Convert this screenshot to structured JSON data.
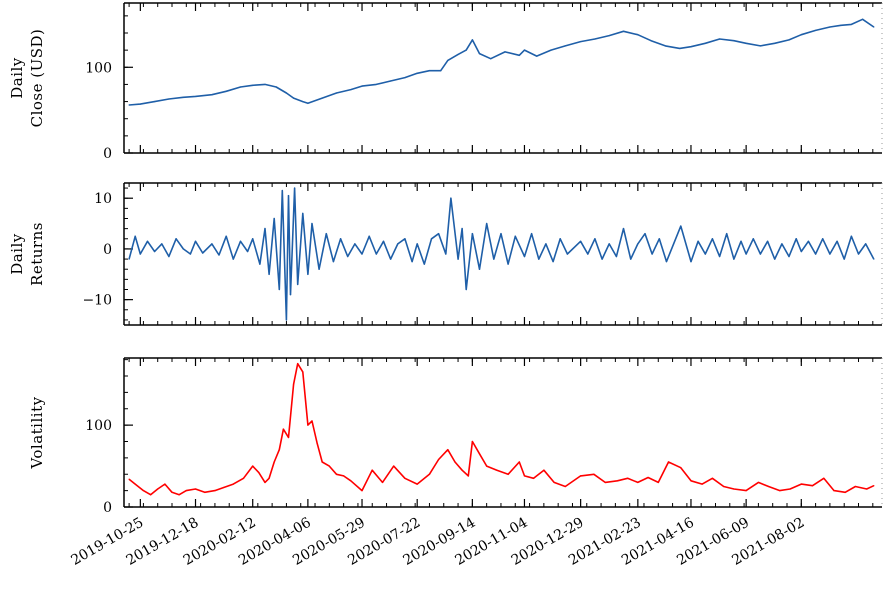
{
  "chart_data": [
    {
      "type": "line",
      "ylabel": [
        "Daily",
        "Close (USD)"
      ],
      "ylim": [
        0,
        175
      ],
      "yticks": [
        0,
        100
      ],
      "series": [
        {
          "color": "#1f5fa8",
          "x": [
            "2019-10-14",
            "2019-10-25",
            "2019-11-08",
            "2019-11-22",
            "2019-12-06",
            "2019-12-18",
            "2020-01-03",
            "2020-01-17",
            "2020-01-31",
            "2020-02-12",
            "2020-02-24",
            "2020-03-06",
            "2020-03-16",
            "2020-03-23",
            "2020-04-01",
            "2020-04-06",
            "2020-04-20",
            "2020-05-04",
            "2020-05-18",
            "2020-05-29",
            "2020-06-12",
            "2020-06-26",
            "2020-07-10",
            "2020-07-22",
            "2020-08-03",
            "2020-08-14",
            "2020-08-21",
            "2020-08-31",
            "2020-09-08",
            "2020-09-14",
            "2020-09-21",
            "2020-10-02",
            "2020-10-16",
            "2020-10-30",
            "2020-11-04",
            "2020-11-16",
            "2020-11-30",
            "2020-12-14",
            "2020-12-29",
            "2021-01-12",
            "2021-01-26",
            "2021-02-09",
            "2021-02-23",
            "2021-03-08",
            "2021-03-22",
            "2021-04-05",
            "2021-04-16",
            "2021-04-30",
            "2021-05-14",
            "2021-05-28",
            "2021-06-09",
            "2021-06-23",
            "2021-07-07",
            "2021-07-21",
            "2021-08-02",
            "2021-08-16",
            "2021-08-30",
            "2021-09-10",
            "2021-09-20",
            "2021-10-01",
            "2021-10-12"
          ],
          "values": [
            56,
            57,
            60,
            63,
            65,
            66,
            68,
            72,
            77,
            79,
            80,
            77,
            70,
            64,
            60,
            58,
            64,
            70,
            74,
            78,
            80,
            84,
            88,
            93,
            96,
            96,
            108,
            115,
            120,
            132,
            116,
            110,
            118,
            114,
            120,
            113,
            120,
            125,
            130,
            133,
            137,
            142,
            138,
            131,
            125,
            122,
            124,
            128,
            133,
            131,
            128,
            125,
            128,
            132,
            138,
            143,
            147,
            149,
            150,
            156,
            147
          ]
        }
      ]
    },
    {
      "type": "line",
      "ylabel": [
        "Daily",
        "Returns"
      ],
      "ylim": [
        -15,
        13
      ],
      "yticks": [
        -10,
        0,
        10
      ],
      "series": [
        {
          "color": "#1f5fa8",
          "x": [
            "2019-10-14",
            "2019-10-20",
            "2019-10-25",
            "2019-11-01",
            "2019-11-08",
            "2019-11-15",
            "2019-11-22",
            "2019-11-29",
            "2019-12-06",
            "2019-12-13",
            "2019-12-18",
            "2019-12-25",
            "2020-01-03",
            "2020-01-10",
            "2020-01-17",
            "2020-01-24",
            "2020-01-31",
            "2020-02-07",
            "2020-02-12",
            "2020-02-19",
            "2020-02-24",
            "2020-02-28",
            "2020-03-04",
            "2020-03-09",
            "2020-03-12",
            "2020-03-16",
            "2020-03-18",
            "2020-03-20",
            "2020-03-24",
            "2020-03-27",
            "2020-04-01",
            "2020-04-06",
            "2020-04-10",
            "2020-04-17",
            "2020-04-24",
            "2020-05-01",
            "2020-05-08",
            "2020-05-15",
            "2020-05-22",
            "2020-05-29",
            "2020-06-05",
            "2020-06-12",
            "2020-06-19",
            "2020-06-26",
            "2020-07-03",
            "2020-07-10",
            "2020-07-17",
            "2020-07-22",
            "2020-07-29",
            "2020-08-05",
            "2020-08-12",
            "2020-08-19",
            "2020-08-24",
            "2020-08-31",
            "2020-09-04",
            "2020-09-08",
            "2020-09-14",
            "2020-09-21",
            "2020-09-28",
            "2020-10-05",
            "2020-10-12",
            "2020-10-19",
            "2020-10-26",
            "2020-11-04",
            "2020-11-11",
            "2020-11-18",
            "2020-11-25",
            "2020-12-02",
            "2020-12-09",
            "2020-12-16",
            "2020-12-29",
            "2021-01-05",
            "2021-01-12",
            "2021-01-19",
            "2021-01-26",
            "2021-02-02",
            "2021-02-09",
            "2021-02-16",
            "2021-02-23",
            "2021-03-02",
            "2021-03-09",
            "2021-03-16",
            "2021-03-23",
            "2021-03-30",
            "2021-04-06",
            "2021-04-16",
            "2021-04-23",
            "2021-04-30",
            "2021-05-07",
            "2021-05-14",
            "2021-05-21",
            "2021-05-28",
            "2021-06-04",
            "2021-06-09",
            "2021-06-16",
            "2021-06-23",
            "2021-06-30",
            "2021-07-07",
            "2021-07-14",
            "2021-07-21",
            "2021-07-28",
            "2021-08-02",
            "2021-08-09",
            "2021-08-16",
            "2021-08-23",
            "2021-08-30",
            "2021-09-06",
            "2021-09-13",
            "2021-09-20",
            "2021-09-27",
            "2021-10-04",
            "2021-10-12"
          ],
          "values": [
            -2,
            2.5,
            -1,
            1.5,
            -0.5,
            1,
            -1.5,
            2,
            0,
            -1,
            1.5,
            -0.8,
            1,
            -1.2,
            2.5,
            -2,
            1.5,
            -0.5,
            2,
            -3,
            4,
            -5,
            6,
            -8,
            11.5,
            -14,
            10.5,
            -9,
            12,
            -7,
            7,
            -5,
            5,
            -4,
            3,
            -2.5,
            2,
            -1.5,
            1,
            -1,
            2.5,
            -1,
            1.5,
            -2,
            1,
            2,
            -2.5,
            1,
            -3,
            2,
            3,
            -1,
            10,
            -2,
            4,
            -8,
            3,
            -4,
            5,
            -2,
            3,
            -3,
            2.5,
            -1.5,
            3,
            -2,
            1,
            -2.5,
            2,
            -1,
            1.5,
            -1,
            2,
            -2,
            1,
            -1.5,
            4,
            -2,
            1,
            3,
            -1,
            2,
            -2.5,
            1,
            4.5,
            -2.5,
            1.5,
            -1,
            2,
            -1.5,
            3,
            -2,
            1.5,
            -1,
            2,
            -1,
            1.5,
            -2,
            1,
            -1.5,
            2,
            -0.5,
            1.5,
            -1,
            2,
            -1,
            1.5,
            -2,
            2.5,
            -1,
            1,
            -2
          ]
        }
      ]
    },
    {
      "type": "line",
      "ylabel": [
        "Volatility"
      ],
      "ylim": [
        0,
        182
      ],
      "yticks": [
        0,
        100
      ],
      "series": [
        {
          "color": "#ff0000",
          "x": [
            "2019-10-14",
            "2019-10-20",
            "2019-10-28",
            "2019-11-04",
            "2019-11-11",
            "2019-11-18",
            "2019-11-25",
            "2019-12-02",
            "2019-12-09",
            "2019-12-18",
            "2019-12-27",
            "2020-01-06",
            "2020-01-15",
            "2020-01-24",
            "2020-02-03",
            "2020-02-12",
            "2020-02-18",
            "2020-02-24",
            "2020-02-28",
            "2020-03-04",
            "2020-03-09",
            "2020-03-13",
            "2020-03-18",
            "2020-03-23",
            "2020-03-27",
            "2020-04-01",
            "2020-04-06",
            "2020-04-10",
            "2020-04-15",
            "2020-04-20",
            "2020-04-27",
            "2020-05-04",
            "2020-05-11",
            "2020-05-18",
            "2020-05-29",
            "2020-06-08",
            "2020-06-18",
            "2020-06-29",
            "2020-07-10",
            "2020-07-22",
            "2020-08-03",
            "2020-08-12",
            "2020-08-21",
            "2020-08-28",
            "2020-09-04",
            "2020-09-10",
            "2020-09-14",
            "2020-09-21",
            "2020-09-28",
            "2020-10-08",
            "2020-10-19",
            "2020-10-30",
            "2020-11-04",
            "2020-11-13",
            "2020-11-23",
            "2020-12-03",
            "2020-12-14",
            "2020-12-29",
            "2021-01-11",
            "2021-01-22",
            "2021-02-03",
            "2021-02-13",
            "2021-02-23",
            "2021-03-05",
            "2021-03-15",
            "2021-03-25",
            "2021-04-06",
            "2021-04-16",
            "2021-04-27",
            "2021-05-07",
            "2021-05-18",
            "2021-05-28",
            "2021-06-09",
            "2021-06-21",
            "2021-07-01",
            "2021-07-12",
            "2021-07-22",
            "2021-08-02",
            "2021-08-13",
            "2021-08-24",
            "2021-09-03",
            "2021-09-14",
            "2021-09-24",
            "2021-10-05",
            "2021-10-12"
          ],
          "values": [
            34,
            28,
            20,
            15,
            22,
            28,
            18,
            15,
            20,
            22,
            18,
            20,
            24,
            28,
            35,
            50,
            42,
            30,
            35,
            55,
            70,
            95,
            85,
            150,
            175,
            165,
            100,
            105,
            78,
            55,
            50,
            40,
            38,
            32,
            20,
            45,
            30,
            50,
            35,
            28,
            40,
            58,
            70,
            55,
            45,
            38,
            80,
            65,
            50,
            45,
            40,
            55,
            38,
            35,
            45,
            30,
            25,
            38,
            40,
            30,
            32,
            35,
            30,
            36,
            30,
            55,
            48,
            32,
            28,
            35,
            25,
            22,
            20,
            30,
            25,
            20,
            22,
            28,
            26,
            35,
            20,
            18,
            25,
            22,
            26
          ]
        }
      ]
    }
  ],
  "x_ticks": [
    "2019-10-25",
    "2019-12-18",
    "2020-02-12",
    "2020-04-06",
    "2020-05-29",
    "2020-07-22",
    "2020-09-14",
    "2020-11-04",
    "2020-12-29",
    "2021-02-23",
    "2021-04-16",
    "2021-06-09",
    "2021-08-02"
  ],
  "x_range": [
    "2019-10-09",
    "2021-10-20"
  ]
}
